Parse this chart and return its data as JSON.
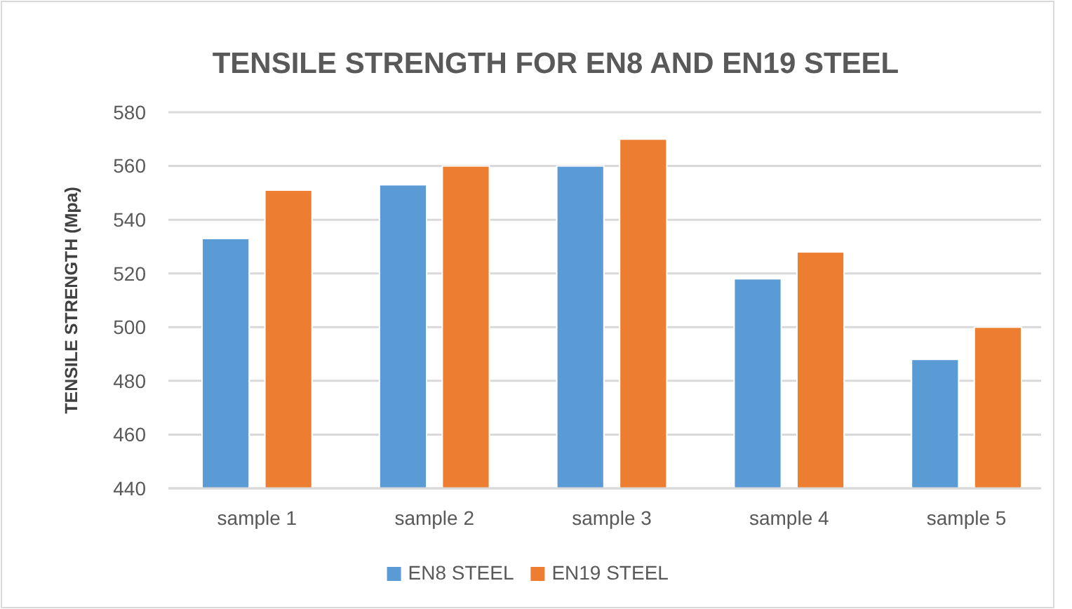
{
  "chart_data": {
    "type": "bar",
    "title": "TENSILE STRENGTH FOR EN8 AND EN19 STEEL",
    "ylabel": "TENSILE STRENGTH  (Mpa)",
    "categories": [
      "sample 1",
      "sample 2",
      "sample 3",
      "sample 4",
      "sample 5"
    ],
    "series": [
      {
        "name": "EN8 STEEL",
        "color": "#5b9bd5",
        "values": [
          533,
          553,
          560,
          518,
          488
        ]
      },
      {
        "name": "EN19 STEEL",
        "color": "#ed7d31",
        "values": [
          551,
          560,
          570,
          528,
          500
        ]
      }
    ],
    "ylim": [
      440,
      580
    ],
    "yticks": [
      440,
      460,
      480,
      500,
      520,
      540,
      560,
      580
    ],
    "grid": "y",
    "legend": "bottom"
  }
}
